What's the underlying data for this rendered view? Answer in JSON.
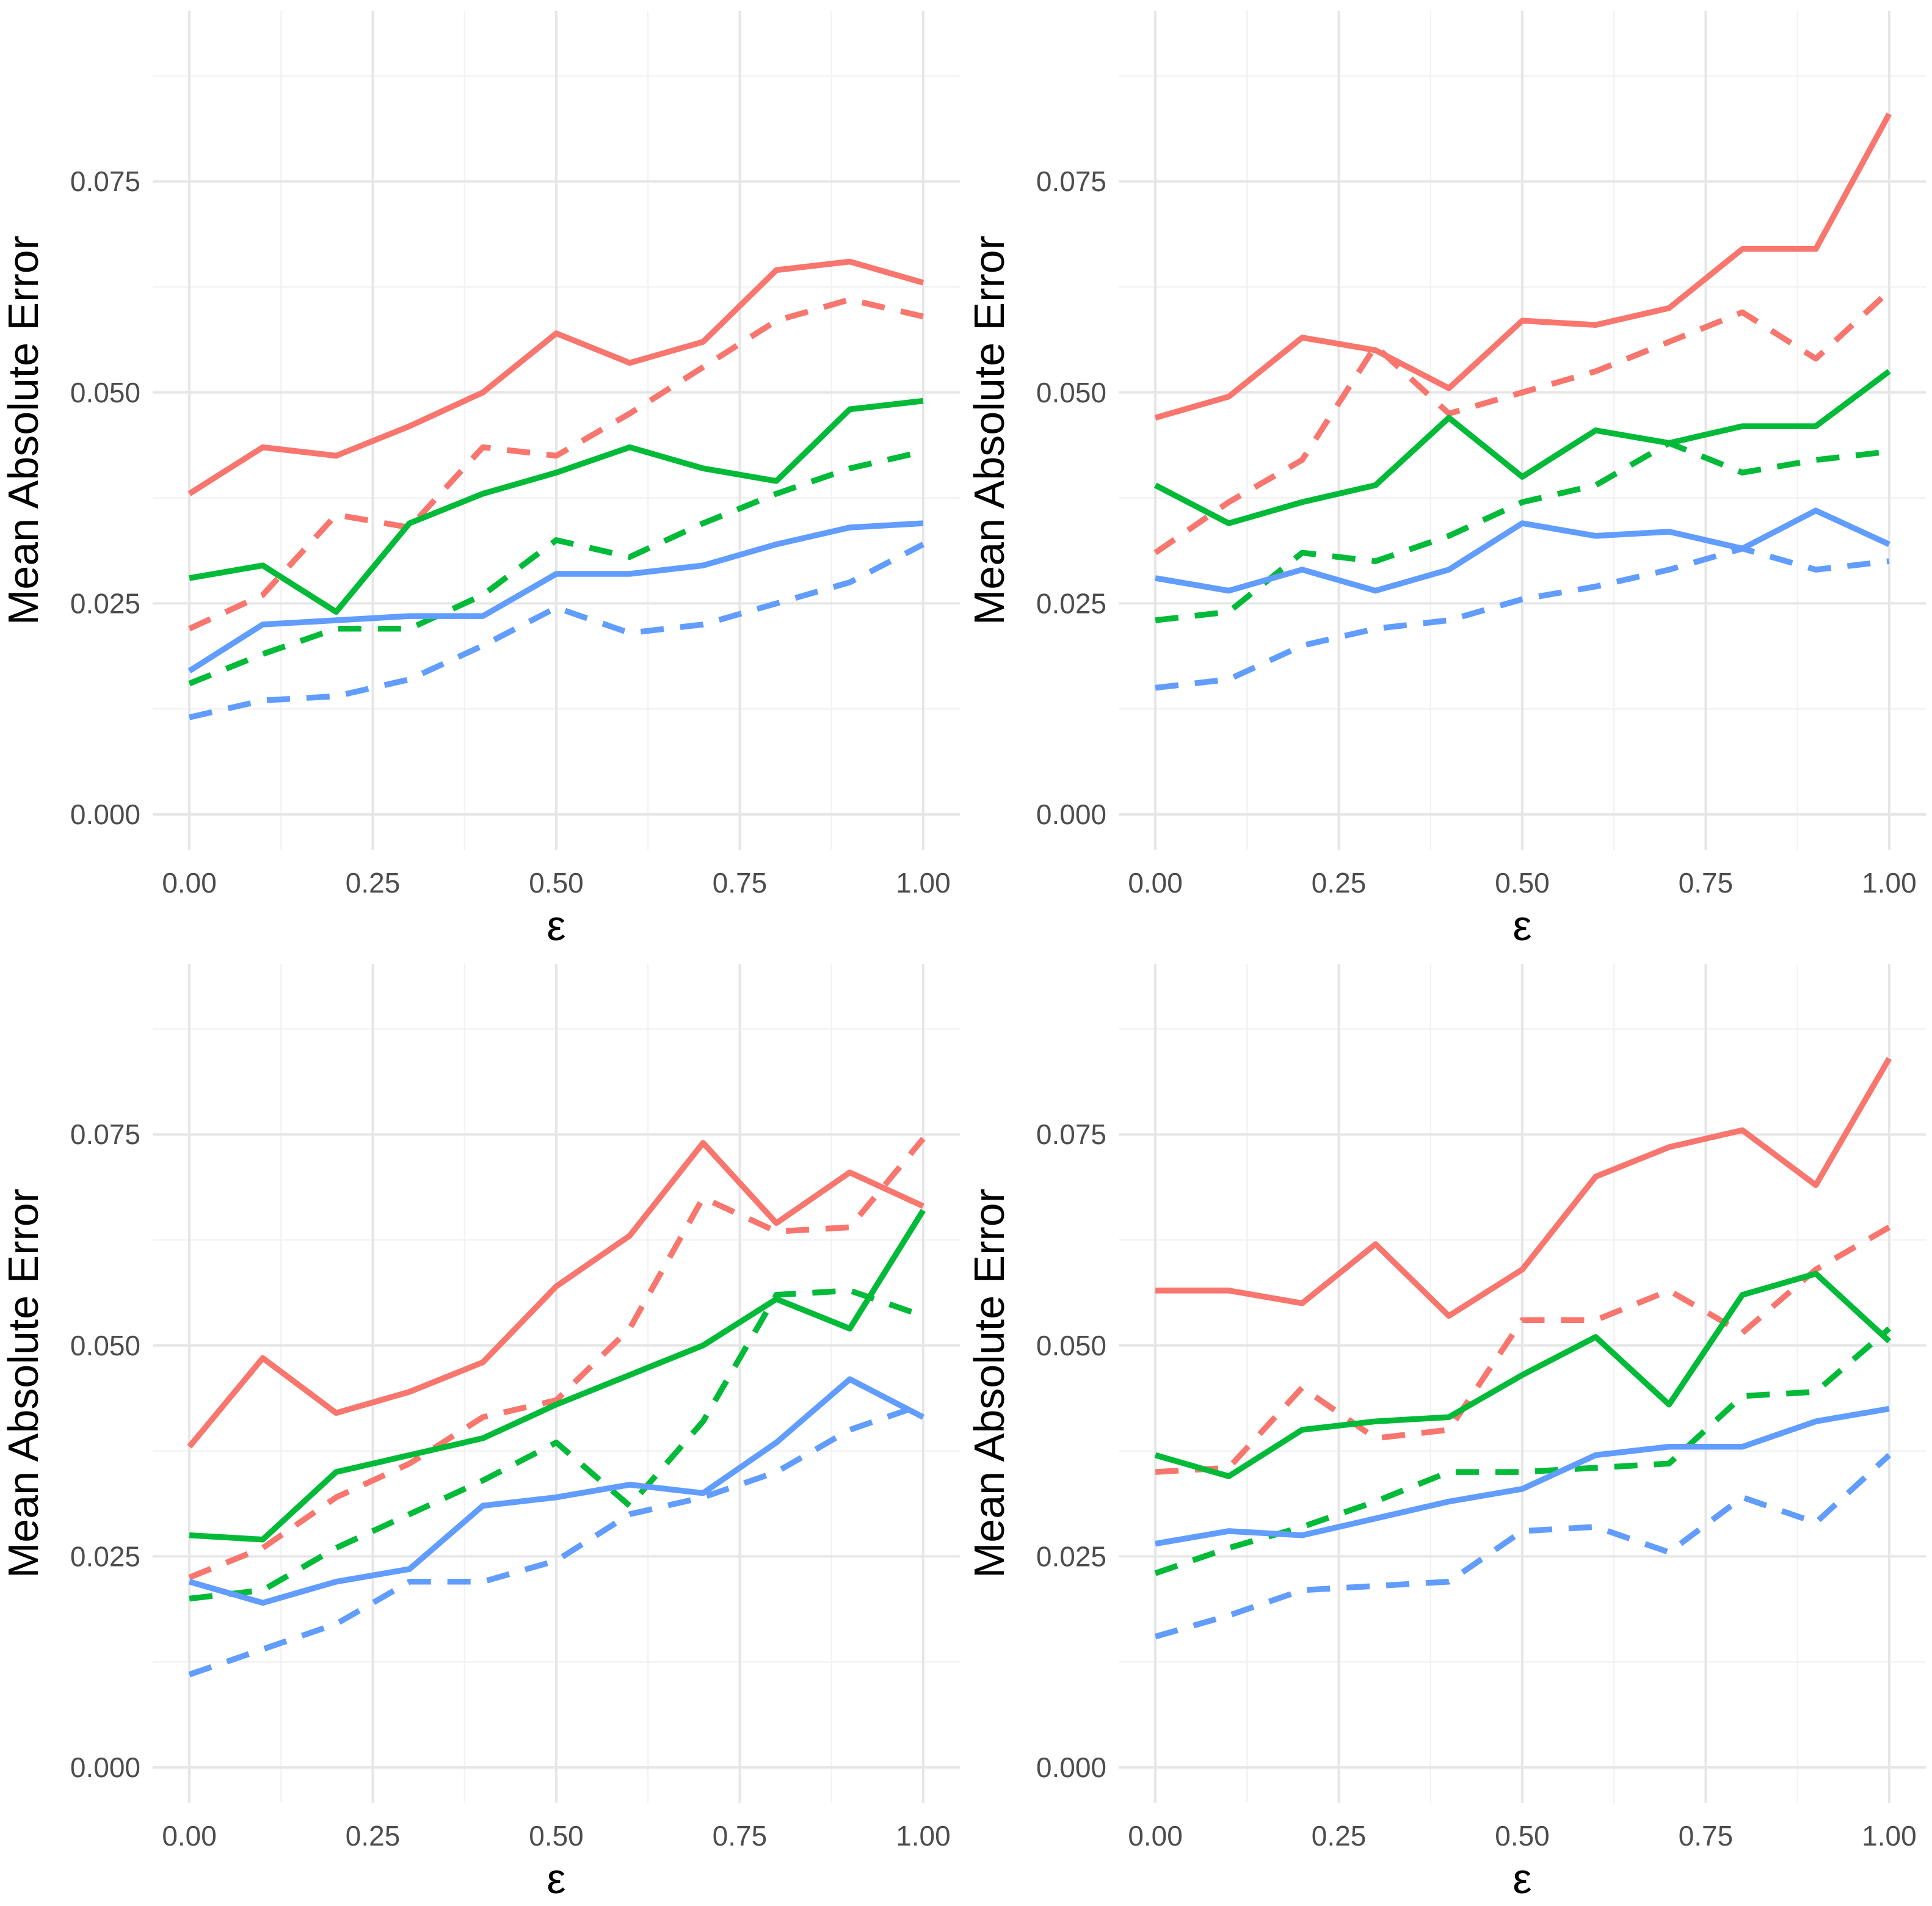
{
  "page": {
    "background": "#ffffff",
    "layout": "2x2 grid of line charts, no titles, no legends"
  },
  "style": {
    "red": "#F8766D",
    "green": "#00BA38",
    "blue": "#619CFF",
    "grid_major_color": "#e6e6e6",
    "grid_minor_color": "#f2f2f2",
    "tick_text_color": "#4d4d4d",
    "axis_title_color": "#000000"
  },
  "chart_data": [
    {
      "type": "line",
      "position": "top-left",
      "title": "",
      "xlabel": "ε",
      "ylabel": "Mean Absolute Error",
      "grid": true,
      "legend": "none",
      "xlim": [
        -0.05,
        1.05
      ],
      "ylim": [
        -0.0042,
        0.0952
      ],
      "x_ticks": [
        "0.00",
        "0.25",
        "0.50",
        "0.75",
        "1.00"
      ],
      "x_tick_values": [
        0,
        0.25,
        0.5,
        0.75,
        1.0
      ],
      "y_ticks": [
        "0.000",
        "0.025",
        "0.050",
        "0.075"
      ],
      "y_tick_values": [
        0,
        0.025,
        0.05,
        0.075
      ],
      "x_minor_ticks": [
        0.125,
        0.375,
        0.625,
        0.875
      ],
      "y_minor_ticks": [
        0.0125,
        0.0375,
        0.0625,
        0.0875
      ],
      "x": [
        0,
        0.1,
        0.2,
        0.3,
        0.4,
        0.5,
        0.6,
        0.7,
        0.8,
        0.9,
        1.0
      ],
      "series": [
        {
          "name": "red-solid",
          "color": "#F8766D",
          "dash": "solid",
          "values": [
            0.038,
            0.0435,
            0.0425,
            0.046,
            0.05,
            0.057,
            0.0535,
            0.056,
            0.0645,
            0.0655,
            0.063
          ]
        },
        {
          "name": "red-dashed",
          "color": "#F8766D",
          "dash": "dashed",
          "values": [
            0.022,
            0.026,
            0.0355,
            0.034,
            0.0435,
            0.0425,
            0.0475,
            0.053,
            0.0585,
            0.061,
            0.059
          ]
        },
        {
          "name": "green-solid",
          "color": "#00BA38",
          "dash": "solid",
          "values": [
            0.028,
            0.0295,
            0.024,
            0.0345,
            0.038,
            0.0405,
            0.0435,
            0.041,
            0.0395,
            0.048,
            0.049
          ]
        },
        {
          "name": "green-dashed",
          "color": "#00BA38",
          "dash": "dashed",
          "values": [
            0.0155,
            0.019,
            0.022,
            0.022,
            0.026,
            0.0325,
            0.0305,
            0.0345,
            0.038,
            0.041,
            0.043
          ]
        },
        {
          "name": "blue-solid",
          "color": "#619CFF",
          "dash": "solid",
          "values": [
            0.017,
            0.0225,
            0.023,
            0.0235,
            0.0235,
            0.0285,
            0.0285,
            0.0295,
            0.032,
            0.034,
            0.0345
          ]
        },
        {
          "name": "blue-dashed",
          "color": "#619CFF",
          "dash": "dashed",
          "values": [
            0.0115,
            0.0135,
            0.014,
            0.016,
            0.02,
            0.0245,
            0.0215,
            0.0225,
            0.025,
            0.0275,
            0.032
          ]
        }
      ]
    },
    {
      "type": "line",
      "position": "top-right",
      "title": "",
      "xlabel": "ε",
      "ylabel": "Mean Absolute Error",
      "grid": true,
      "legend": "none",
      "xlim": [
        -0.05,
        1.05
      ],
      "ylim": [
        -0.0042,
        0.0952
      ],
      "x_ticks": [
        "0.00",
        "0.25",
        "0.50",
        "0.75",
        "1.00"
      ],
      "x_tick_values": [
        0,
        0.25,
        0.5,
        0.75,
        1.0
      ],
      "y_ticks": [
        "0.000",
        "0.025",
        "0.050",
        "0.075"
      ],
      "y_tick_values": [
        0,
        0.025,
        0.05,
        0.075
      ],
      "x_minor_ticks": [
        0.125,
        0.375,
        0.625,
        0.875
      ],
      "y_minor_ticks": [
        0.0125,
        0.0375,
        0.0625,
        0.0875
      ],
      "x": [
        0,
        0.1,
        0.2,
        0.3,
        0.4,
        0.5,
        0.6,
        0.7,
        0.8,
        0.9,
        1.0
      ],
      "series": [
        {
          "name": "red-solid",
          "color": "#F8766D",
          "dash": "solid",
          "values": [
            0.047,
            0.0495,
            0.0565,
            0.055,
            0.0505,
            0.0585,
            0.058,
            0.06,
            0.067,
            0.067,
            0.083
          ]
        },
        {
          "name": "red-dashed",
          "color": "#F8766D",
          "dash": "dashed",
          "values": [
            0.031,
            0.037,
            0.042,
            0.0555,
            0.0475,
            0.05,
            0.0525,
            0.056,
            0.0595,
            0.054,
            0.062
          ]
        },
        {
          "name": "green-solid",
          "color": "#00BA38",
          "dash": "solid",
          "values": [
            0.039,
            0.0345,
            0.037,
            0.039,
            0.047,
            0.04,
            0.0455,
            0.044,
            0.046,
            0.046,
            0.0525
          ]
        },
        {
          "name": "green-dashed",
          "color": "#00BA38",
          "dash": "dashed",
          "values": [
            0.023,
            0.024,
            0.031,
            0.03,
            0.033,
            0.037,
            0.039,
            0.044,
            0.0405,
            0.042,
            0.043
          ]
        },
        {
          "name": "blue-solid",
          "color": "#619CFF",
          "dash": "solid",
          "values": [
            0.028,
            0.0265,
            0.029,
            0.0265,
            0.029,
            0.0345,
            0.033,
            0.0335,
            0.0315,
            0.036,
            0.032
          ]
        },
        {
          "name": "blue-dashed",
          "color": "#619CFF",
          "dash": "dashed",
          "values": [
            0.015,
            0.016,
            0.02,
            0.022,
            0.023,
            0.0255,
            0.027,
            0.029,
            0.0315,
            0.029,
            0.03
          ]
        }
      ]
    },
    {
      "type": "line",
      "position": "bottom-left",
      "title": "",
      "xlabel": "ε",
      "ylabel": "Mean Absolute Error",
      "grid": true,
      "legend": "none",
      "xlim": [
        -0.05,
        1.05
      ],
      "ylim": [
        -0.0042,
        0.0952
      ],
      "x_ticks": [
        "0.00",
        "0.25",
        "0.50",
        "0.75",
        "1.00"
      ],
      "x_tick_values": [
        0,
        0.25,
        0.5,
        0.75,
        1.0
      ],
      "y_ticks": [
        "0.000",
        "0.025",
        "0.050",
        "0.075"
      ],
      "y_tick_values": [
        0,
        0.025,
        0.05,
        0.075
      ],
      "x_minor_ticks": [
        0.125,
        0.375,
        0.625,
        0.875
      ],
      "y_minor_ticks": [
        0.0125,
        0.0375,
        0.0625,
        0.0875
      ],
      "x": [
        0,
        0.1,
        0.2,
        0.3,
        0.4,
        0.5,
        0.6,
        0.7,
        0.8,
        0.9,
        1.0
      ],
      "series": [
        {
          "name": "red-solid",
          "color": "#F8766D",
          "dash": "solid",
          "values": [
            0.038,
            0.0485,
            0.042,
            0.0445,
            0.048,
            0.057,
            0.063,
            0.074,
            0.0645,
            0.0705,
            0.0665
          ]
        },
        {
          "name": "red-dashed",
          "color": "#F8766D",
          "dash": "dashed",
          "values": [
            0.0225,
            0.026,
            0.032,
            0.036,
            0.0415,
            0.0435,
            0.052,
            0.0675,
            0.0635,
            0.064,
            0.0745
          ]
        },
        {
          "name": "green-solid",
          "color": "#00BA38",
          "dash": "solid",
          "values": [
            0.0275,
            0.027,
            0.035,
            0.037,
            0.039,
            0.043,
            0.0465,
            0.05,
            0.0555,
            0.052,
            0.066
          ]
        },
        {
          "name": "green-dashed",
          "color": "#00BA38",
          "dash": "dashed",
          "values": [
            0.02,
            0.021,
            0.026,
            0.03,
            0.034,
            0.0385,
            0.031,
            0.041,
            0.056,
            0.0565,
            0.0535
          ]
        },
        {
          "name": "blue-solid",
          "color": "#619CFF",
          "dash": "solid",
          "values": [
            0.022,
            0.0195,
            0.022,
            0.0235,
            0.031,
            0.032,
            0.0335,
            0.0325,
            0.0385,
            0.046,
            0.0415
          ]
        },
        {
          "name": "blue-dashed",
          "color": "#619CFF",
          "dash": "dashed",
          "values": [
            0.011,
            0.014,
            0.017,
            0.022,
            0.022,
            0.0245,
            0.03,
            0.032,
            0.035,
            0.04,
            0.043
          ]
        }
      ]
    },
    {
      "type": "line",
      "position": "bottom-right",
      "title": "",
      "xlabel": "ε",
      "ylabel": "Mean Absolute Error",
      "grid": true,
      "legend": "none",
      "xlim": [
        -0.05,
        1.05
      ],
      "ylim": [
        -0.0042,
        0.0952
      ],
      "x_ticks": [
        "0.00",
        "0.25",
        "0.50",
        "0.75",
        "1.00"
      ],
      "x_tick_values": [
        0,
        0.25,
        0.5,
        0.75,
        1.0
      ],
      "y_ticks": [
        "0.000",
        "0.025",
        "0.050",
        "0.075"
      ],
      "y_tick_values": [
        0,
        0.025,
        0.05,
        0.075
      ],
      "x_minor_ticks": [
        0.125,
        0.375,
        0.625,
        0.875
      ],
      "y_minor_ticks": [
        0.0125,
        0.0375,
        0.0625,
        0.0875
      ],
      "x": [
        0,
        0.1,
        0.2,
        0.3,
        0.4,
        0.5,
        0.6,
        0.7,
        0.8,
        0.9,
        1.0
      ],
      "series": [
        {
          "name": "red-solid",
          "color": "#F8766D",
          "dash": "solid",
          "values": [
            0.0565,
            0.0565,
            0.055,
            0.062,
            0.0535,
            0.059,
            0.07,
            0.0735,
            0.0755,
            0.069,
            0.084
          ]
        },
        {
          "name": "red-dashed",
          "color": "#F8766D",
          "dash": "dashed",
          "values": [
            0.035,
            0.0355,
            0.045,
            0.039,
            0.04,
            0.053,
            0.053,
            0.0565,
            0.0515,
            0.059,
            0.064
          ]
        },
        {
          "name": "green-solid",
          "color": "#00BA38",
          "dash": "solid",
          "values": [
            0.037,
            0.0345,
            0.04,
            0.041,
            0.0415,
            0.0465,
            0.051,
            0.043,
            0.056,
            0.0585,
            0.0505
          ]
        },
        {
          "name": "green-dashed",
          "color": "#00BA38",
          "dash": "dashed",
          "values": [
            0.023,
            0.026,
            0.0285,
            0.0315,
            0.035,
            0.035,
            0.0355,
            0.036,
            0.044,
            0.0445,
            0.052
          ]
        },
        {
          "name": "blue-solid",
          "color": "#619CFF",
          "dash": "solid",
          "values": [
            0.0265,
            0.028,
            0.0275,
            0.0295,
            0.0315,
            0.033,
            0.037,
            0.038,
            0.038,
            0.041,
            0.0425
          ]
        },
        {
          "name": "blue-dashed",
          "color": "#619CFF",
          "dash": "dashed",
          "values": [
            0.0155,
            0.018,
            0.021,
            0.0215,
            0.022,
            0.028,
            0.0285,
            0.0255,
            0.032,
            0.029,
            0.037
          ]
        }
      ]
    }
  ]
}
